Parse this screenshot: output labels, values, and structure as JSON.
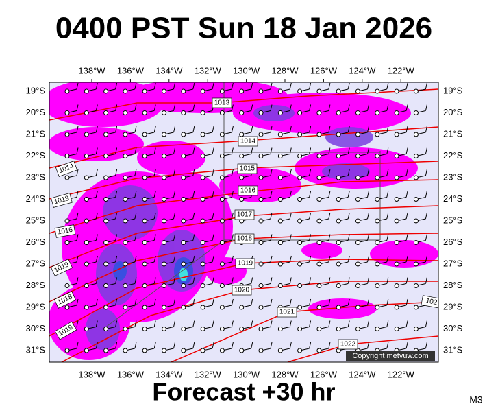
{
  "header": {
    "title": "0400 PST Sun 18 Jan 2026"
  },
  "map": {
    "lon_labels": [
      "138°W",
      "136°W",
      "134°W",
      "132°W",
      "130°W",
      "128°W",
      "126°W",
      "124°W",
      "122°W"
    ],
    "lat_labels": [
      "19°S",
      "20°S",
      "21°S",
      "22°S",
      "23°S",
      "24°S",
      "25°S",
      "26°S",
      "27°S",
      "28°S",
      "29°S",
      "30°S",
      "31°S"
    ],
    "isobar_labels": [
      "1013",
      "1014",
      "1015",
      "1016",
      "1017",
      "1018",
      "1019",
      "1020",
      "1021",
      "1022",
      "1014",
      "1013",
      "1016",
      "1019",
      "1018",
      "1019",
      "102"
    ],
    "copyright": "Copyright metvuw.com"
  },
  "footer": {
    "forecast": "Forecast +30 hr",
    "code": "M3"
  }
}
